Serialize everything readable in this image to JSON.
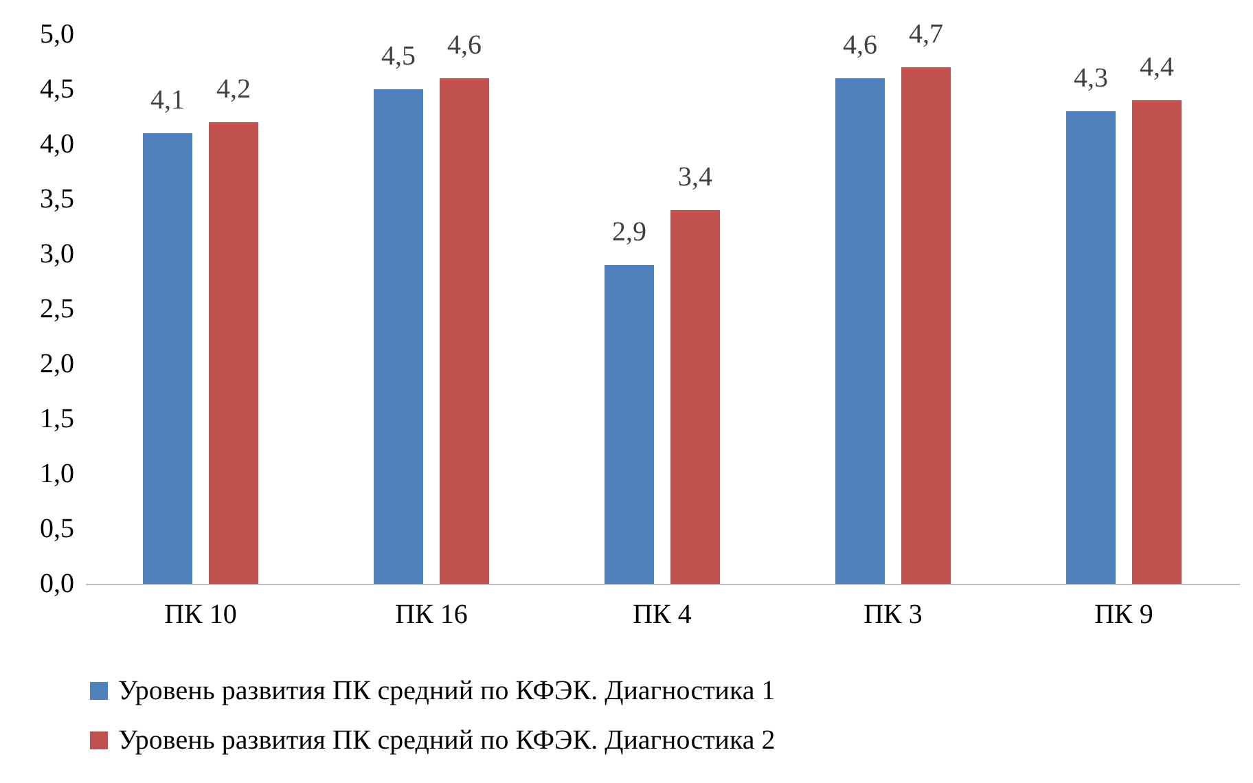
{
  "chart_data": {
    "type": "bar",
    "categories": [
      "ПК 10",
      "ПК 16",
      "ПК 4",
      "ПК 3",
      "ПК 9"
    ],
    "series": [
      {
        "name": "Уровень развития ПК средний по КФЭК. Диагностика 1",
        "color": "#4f81bd",
        "values": [
          4.1,
          4.5,
          2.9,
          4.6,
          4.3
        ],
        "value_labels": [
          "4,1",
          "4,5",
          "2,9",
          "4,6",
          "4,3"
        ]
      },
      {
        "name": "Уровень развития ПК средний по КФЭК. Диагностика 2",
        "color": "#c0504d",
        "values": [
          4.2,
          4.6,
          3.4,
          4.7,
          4.4
        ],
        "value_labels": [
          "4,2",
          "4,6",
          "3,4",
          "4,7",
          "4,4"
        ]
      }
    ],
    "ylim": [
      0,
      5
    ],
    "yticks": [
      {
        "value": 0,
        "label": "0,0"
      },
      {
        "value": 0.5,
        "label": "0,5"
      },
      {
        "value": 1,
        "label": "1,0"
      },
      {
        "value": 1.5,
        "label": "1,5"
      },
      {
        "value": 2,
        "label": "2,0"
      },
      {
        "value": 2.5,
        "label": "2,5"
      },
      {
        "value": 3,
        "label": "3,0"
      },
      {
        "value": 3.5,
        "label": "3,5"
      },
      {
        "value": 4,
        "label": "4,0"
      },
      {
        "value": 4.5,
        "label": "4,5"
      },
      {
        "value": 5,
        "label": "5,0"
      }
    ],
    "grid": false,
    "legend": "bottom"
  }
}
